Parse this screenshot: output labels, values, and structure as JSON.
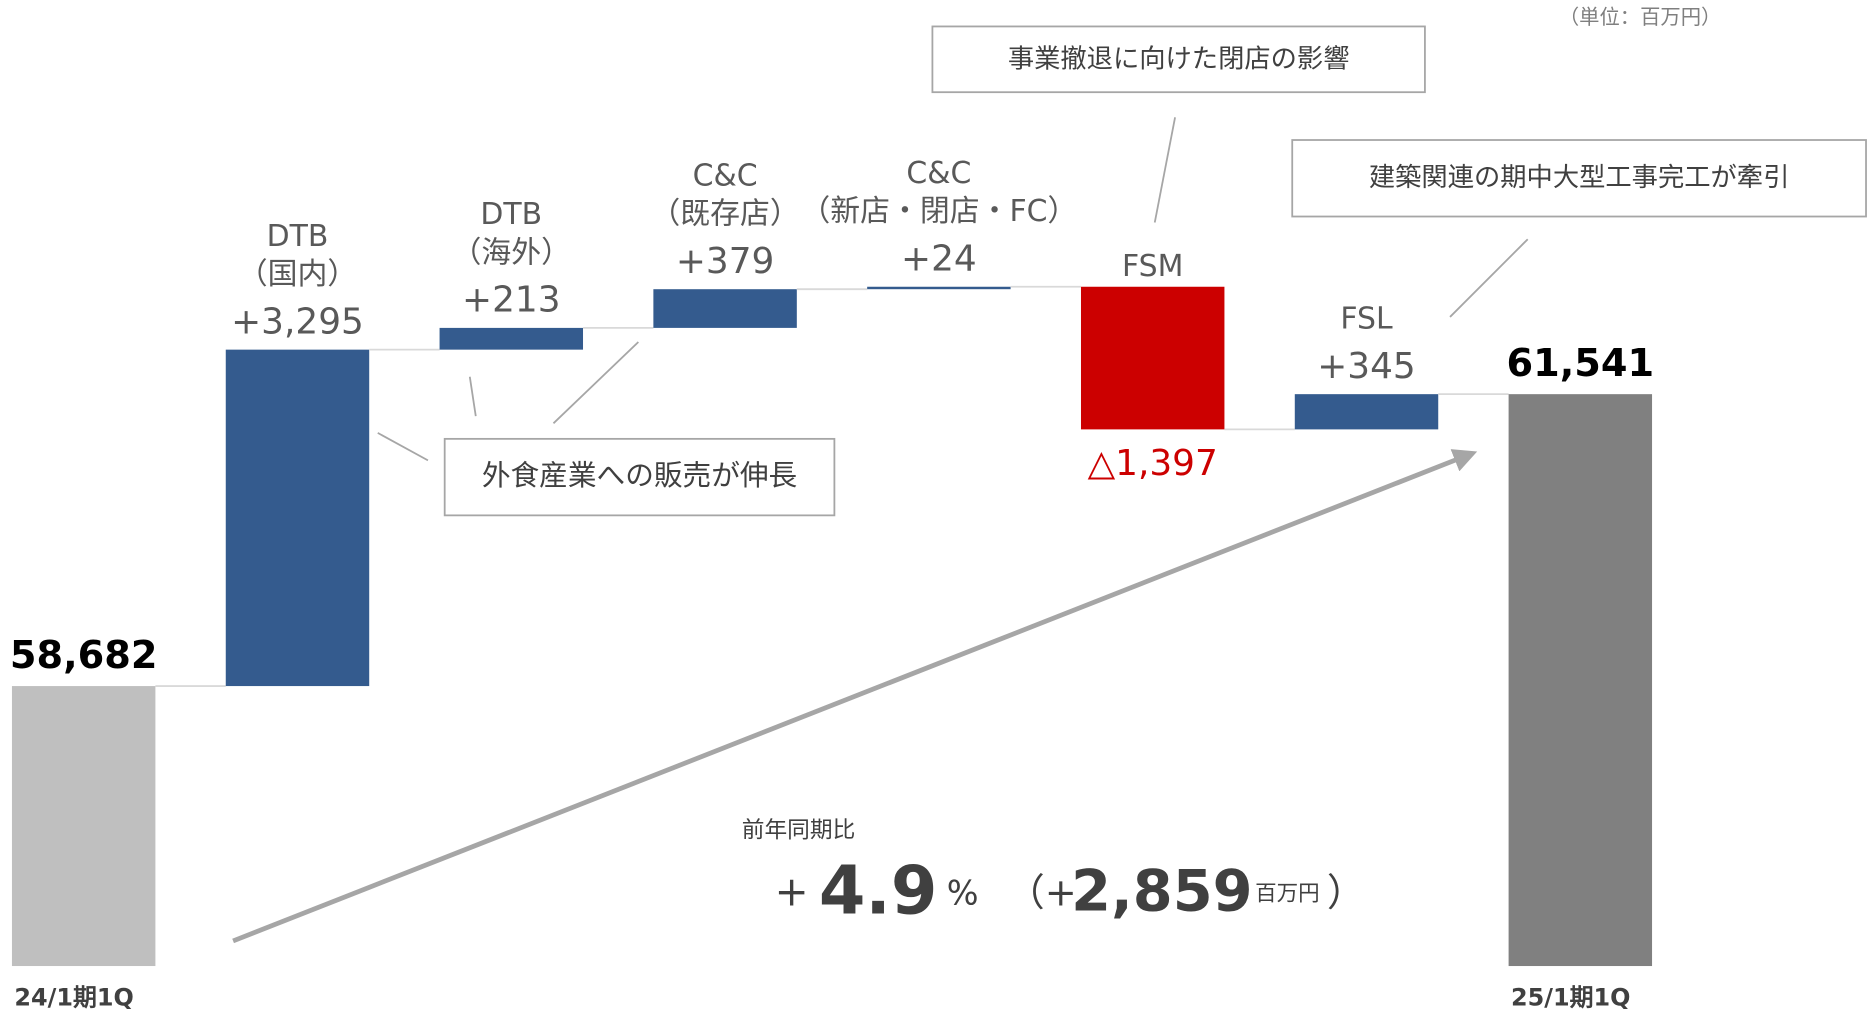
{
  "chart_data": {
    "type": "waterfall",
    "unit_note": "（単位：百万円）",
    "categories": [
      [
        "24/1期1Q"
      ],
      [
        "DTB",
        "（国内）"
      ],
      [
        "DTB",
        "（海外）"
      ],
      [
        "C&C",
        "（既存店）"
      ],
      [
        "C&C",
        "（新店・閉店・FC）"
      ],
      [
        "FSM"
      ],
      [
        "FSL"
      ],
      [
        "25/1期1Q"
      ]
    ],
    "values": [
      58682,
      3295,
      213,
      379,
      24,
      -1397,
      345,
      61541
    ],
    "value_labels": [
      "58,682",
      "+3,295",
      "+213",
      "+379",
      "+24",
      "△1,397",
      "+345",
      "61,541"
    ],
    "kinds": [
      "total",
      "delta",
      "delta",
      "delta",
      "delta",
      "delta",
      "delta",
      "total"
    ],
    "colors": [
      "#bfbfbf",
      "#345b8e",
      "#345b8e",
      "#345b8e",
      "#345b8e",
      "#cc0000",
      "#345b8e",
      "#808080"
    ],
    "ylim": [
      55940,
      65400
    ],
    "annotations": [
      "事業撤退に向けた閉店の影響",
      "建築関連の期中大型工事完工が牽引",
      "外食産業への販売が伸長"
    ],
    "summary": {
      "label": "前年同期比",
      "parts": [
        "+",
        "4.9",
        "%",
        "（+",
        "2,859",
        "百万円",
        "）"
      ]
    }
  }
}
